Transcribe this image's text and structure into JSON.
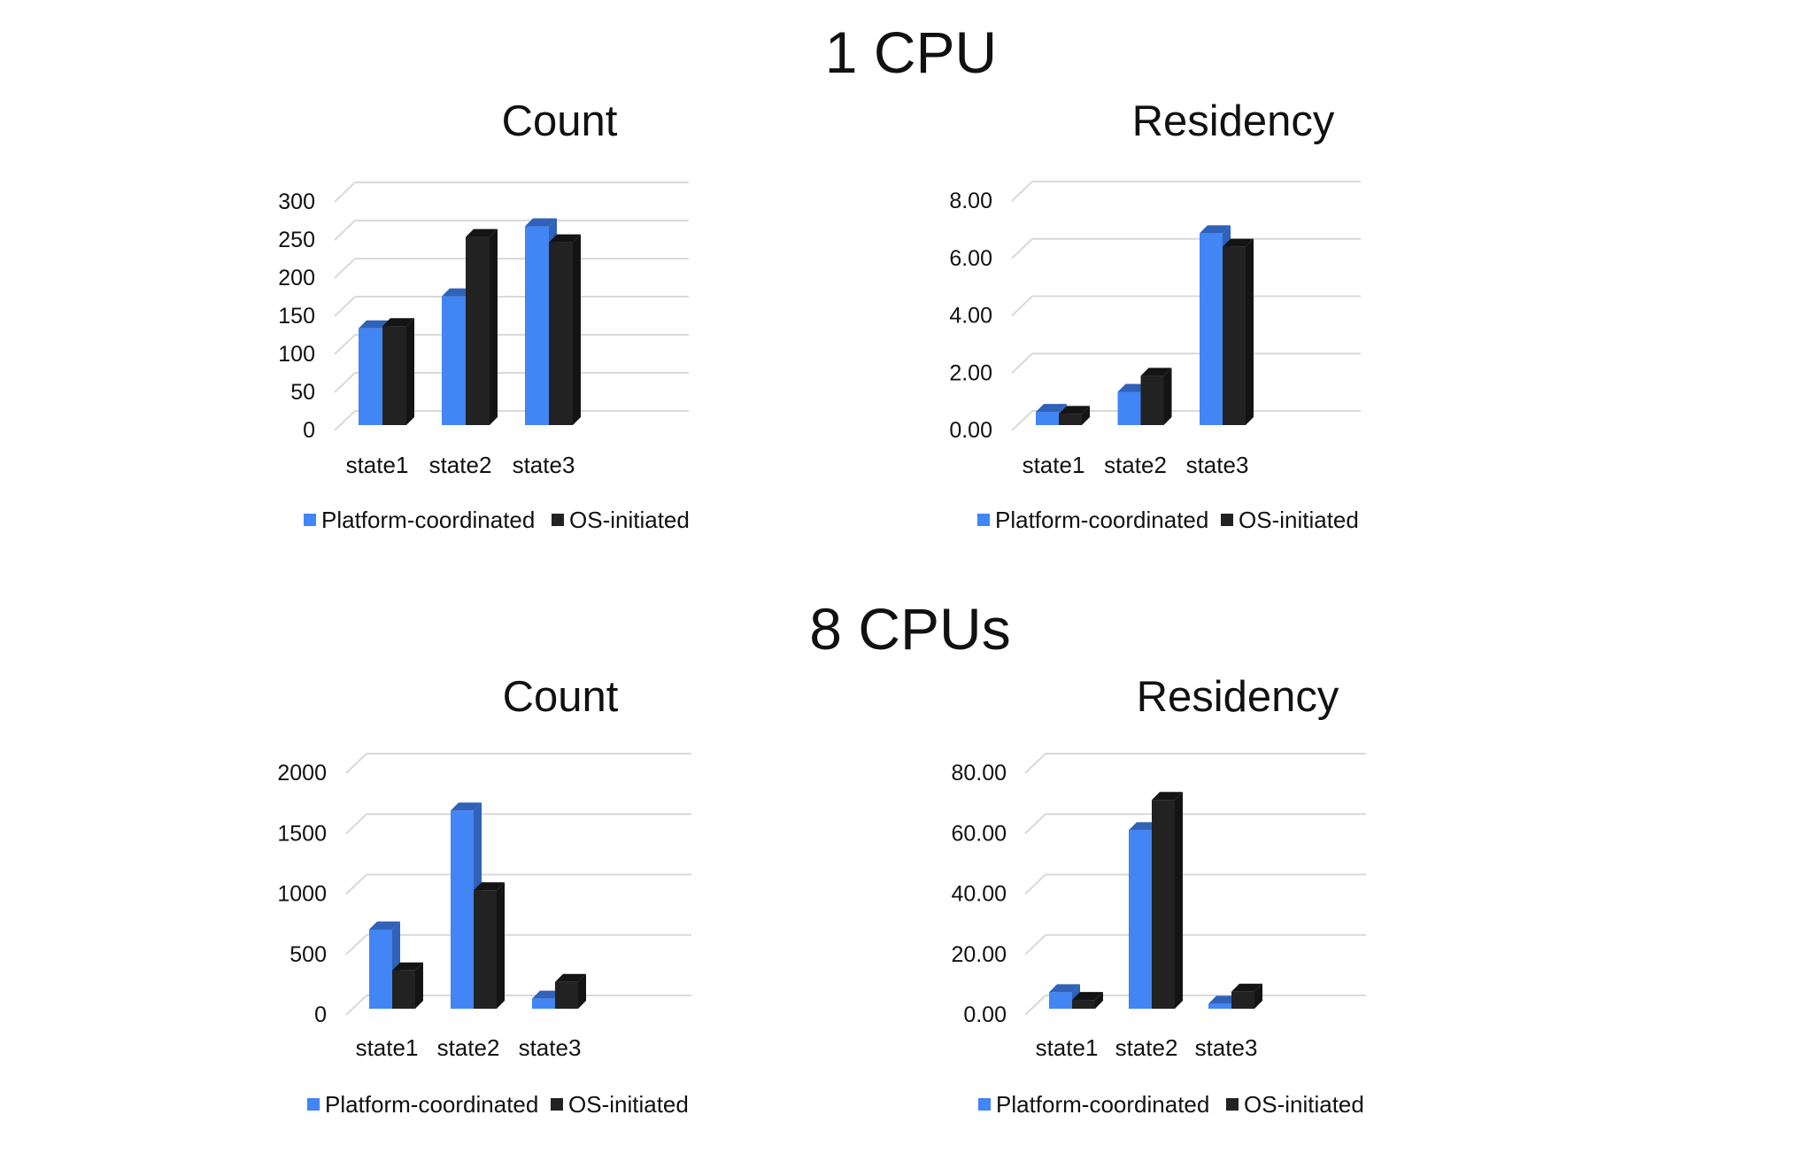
{
  "groups": [
    {
      "title": "1 CPU"
    },
    {
      "title": "8 CPUs"
    }
  ],
  "colors": {
    "platform_coordinated": "#4285f4",
    "platform_coordinated_shade": "#2f62b8",
    "os_initiated": "#222222",
    "os_initiated_shade": "#141414",
    "grid": "#d9d9d9"
  },
  "chart_data": [
    {
      "type": "bar",
      "group": "1 CPU",
      "title": "Count",
      "categories": [
        "state1",
        "state2",
        "state3"
      ],
      "series": [
        {
          "name": "Platform-coordinated",
          "values": [
            127,
            169,
            261
          ]
        },
        {
          "name": "OS-initiated",
          "values": [
            130,
            247,
            240
          ]
        }
      ],
      "yticks": [
        "0",
        "50",
        "100",
        "150",
        "200",
        "250",
        "300"
      ],
      "ylim": [
        0,
        300
      ],
      "grid": true,
      "legend": "bottom",
      "style": "3d-clustered-column"
    },
    {
      "type": "bar",
      "group": "1 CPU",
      "title": "Residency",
      "categories": [
        "state1",
        "state2",
        "state3"
      ],
      "series": [
        {
          "name": "Platform-coordinated",
          "values": [
            0.46,
            1.16,
            6.69
          ]
        },
        {
          "name": "OS-initiated",
          "values": [
            0.39,
            1.72,
            6.22
          ]
        }
      ],
      "yticks": [
        "0.00",
        "2.00",
        "4.00",
        "6.00",
        "8.00"
      ],
      "ylim": [
        0,
        8
      ],
      "grid": true,
      "legend": "bottom",
      "style": "3d-clustered-column"
    },
    {
      "type": "bar",
      "group": "8 CPUs",
      "title": "Count",
      "categories": [
        "state1",
        "state2",
        "state3"
      ],
      "series": [
        {
          "name": "Platform-coordinated",
          "values": [
            656,
            1639,
            83
          ]
        },
        {
          "name": "OS-initiated",
          "values": [
            317,
            980,
            222
          ]
        }
      ],
      "yticks": [
        "0",
        "500",
        "1000",
        "1500",
        "2000"
      ],
      "ylim": [
        0,
        2000
      ],
      "grid": true,
      "legend": "bottom",
      "style": "3d-clustered-column"
    },
    {
      "type": "bar",
      "group": "8 CPUs",
      "title": "Residency",
      "categories": [
        "state1",
        "state2",
        "state3"
      ],
      "series": [
        {
          "name": "Platform-coordinated",
          "values": [
            5.45,
            59.1,
            1.65
          ]
        },
        {
          "name": "OS-initiated",
          "values": [
            2.9,
            69.1,
            5.64
          ]
        }
      ],
      "yticks": [
        "0.00",
        "20.00",
        "40.00",
        "60.00",
        "80.00"
      ],
      "ylim": [
        0,
        80
      ],
      "grid": true,
      "legend": "bottom",
      "style": "3d-clustered-column"
    }
  ]
}
